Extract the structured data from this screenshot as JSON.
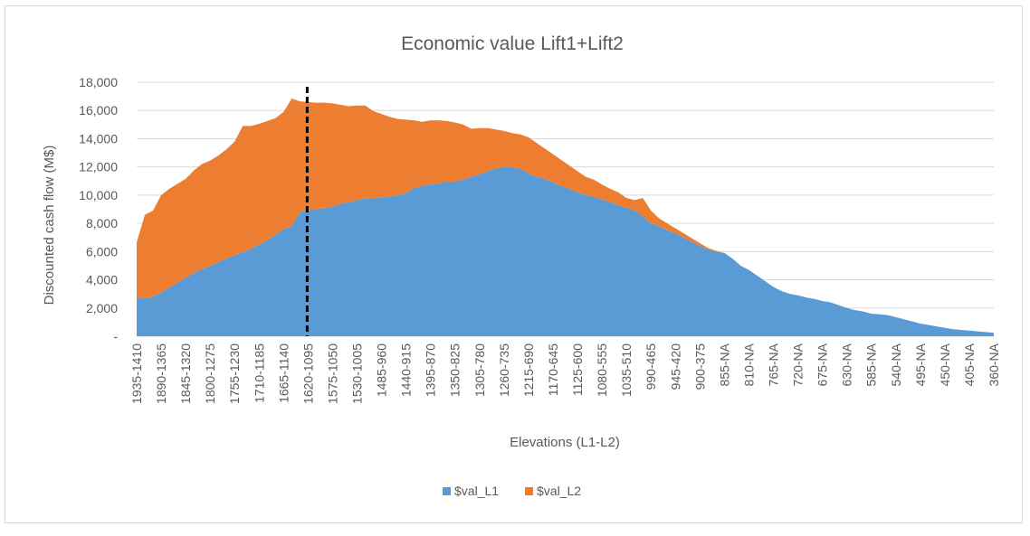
{
  "chart_data": {
    "type": "area",
    "stacked": true,
    "title": "Economic value Lift1+Lift2",
    "xlabel": "Elevations (L1-L2)",
    "ylabel": "Discounted cash flow (M$)",
    "ylim": [
      0,
      18000
    ],
    "yticks": [
      "-",
      "2,000",
      "4,000",
      "6,000",
      "8,000",
      "10,000",
      "12,000",
      "14,000",
      "16,000",
      "18,000"
    ],
    "grid": true,
    "legend_position": "bottom",
    "categories": [
      "1935-1410",
      "1920-1395",
      "1905-1380",
      "1890-1365",
      "1875-1350",
      "1860-1335",
      "1845-1320",
      "1830-1305",
      "1815-1290",
      "1800-1275",
      "1785-1260",
      "1770-1245",
      "1755-1230",
      "1740-1215",
      "1725-1200",
      "1710-1185",
      "1695-1170",
      "1680-1155",
      "1665-1140",
      "1650-1125",
      "1635-1110",
      "1620-1095",
      "1605-1080",
      "1590-1065",
      "1575-1050",
      "1560-1035",
      "1545-1020",
      "1530-1005",
      "1515-990",
      "1500-975",
      "1485-960",
      "1470-945",
      "1455-930",
      "1440-915",
      "1425-900",
      "1410-885",
      "1395-870",
      "1380-855",
      "1365-840",
      "1350-825",
      "1335-810",
      "1320-795",
      "1305-780",
      "1290-765",
      "1275-750",
      "1260-735",
      "1245-720",
      "1230-705",
      "1215-690",
      "1200-675",
      "1185-660",
      "1170-645",
      "1155-630",
      "1140-615",
      "1125-600",
      "1110-585",
      "1095-570",
      "1080-555",
      "1065-540",
      "1050-525",
      "1035-510",
      "1020-495",
      "1005-480",
      "990-465",
      "975-450",
      "960-435",
      "945-420",
      "930-405",
      "915-390",
      "900-375",
      "885-360",
      "870-NA",
      "855-NA",
      "840-NA",
      "825-NA",
      "810-NA",
      "795-NA",
      "780-NA",
      "765-NA",
      "750-NA",
      "735-NA",
      "720-NA",
      "705-NA",
      "690-NA",
      "675-NA",
      "660-NA",
      "645-NA",
      "630-NA",
      "615-NA",
      "600-NA",
      "585-NA",
      "570-NA",
      "555-NA",
      "540-NA",
      "525-NA",
      "510-NA",
      "495-NA",
      "480-NA",
      "465-NA",
      "450-NA",
      "435-NA",
      "420-NA",
      "405-NA",
      "390-NA",
      "375-NA",
      "360-NA"
    ],
    "label_every": 3,
    "series": [
      {
        "name": "$val_L1",
        "color": "#5b9bd5",
        "values": [
          2750,
          2700,
          2800,
          3100,
          3450,
          3800,
          4150,
          4500,
          4750,
          5000,
          5250,
          5500,
          5750,
          5950,
          6200,
          6500,
          6800,
          7200,
          7600,
          7800,
          8800,
          8900,
          9000,
          9100,
          9200,
          9400,
          9500,
          9650,
          9750,
          9800,
          9850,
          9900,
          10000,
          10150,
          10500,
          10700,
          10750,
          10850,
          10950,
          10950,
          11100,
          11300,
          11500,
          11700,
          11900,
          12000,
          12000,
          11850,
          11550,
          11300,
          11150,
          10900,
          10650,
          10450,
          10200,
          10000,
          9900,
          9700,
          9500,
          9300,
          9100,
          8900,
          8500,
          8000,
          7800,
          7500,
          7300,
          7000,
          6700,
          6400,
          6150,
          6000,
          5900,
          5500,
          5000,
          4700,
          4300,
          3900,
          3500,
          3200,
          3000,
          2900,
          2750,
          2650,
          2500,
          2400,
          2200,
          2000,
          1850,
          1750,
          1600,
          1550,
          1500,
          1350,
          1200,
          1050,
          900,
          800,
          700,
          600,
          500,
          450,
          400,
          350,
          300,
          250
        ],
        "values_note": null
      },
      {
        "name": "$val_L2",
        "color": "#ed7d31",
        "values": [
          3900,
          5900,
          6100,
          6900,
          7000,
          7000,
          7000,
          7250,
          7450,
          7450,
          7550,
          7750,
          8050,
          8950,
          8700,
          8550,
          8450,
          8250,
          8300,
          9050,
          7850,
          7700,
          7550,
          7450,
          7300,
          7000,
          6800,
          6700,
          6600,
          6150,
          5900,
          5650,
          5400,
          5200,
          4800,
          4500,
          4550,
          4450,
          4300,
          4200,
          3900,
          3400,
          3250,
          3050,
          2750,
          2550,
          2400,
          2450,
          2550,
          2400,
          2150,
          2000,
          1850,
          1650,
          1500,
          1300,
          1200,
          1050,
          950,
          900,
          700,
          750,
          1300,
          900,
          550,
          500,
          350,
          300,
          250,
          200,
          100,
          50,
          0,
          0,
          0,
          0,
          0,
          0,
          0,
          0,
          0,
          0,
          0,
          0,
          0,
          0,
          0,
          0,
          0,
          0,
          0,
          0,
          0,
          0,
          0,
          0,
          0,
          0,
          0,
          0,
          0,
          0,
          0,
          0,
          0,
          0
        ]
      }
    ],
    "marker_line_category": "1620-1095"
  }
}
